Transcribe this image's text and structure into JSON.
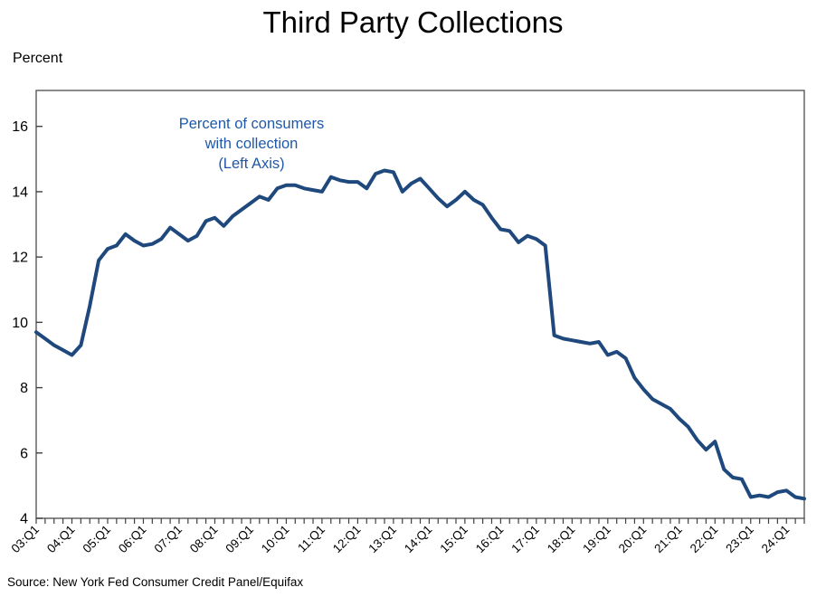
{
  "title": "Third Party Collections",
  "y_axis_unit_label": "Percent",
  "annotation": {
    "line1": "Percent of consumers",
    "line2": "with collection",
    "line3": "(Left Axis)"
  },
  "source": "Source: New York Fed Consumer Credit Panel/Equifax",
  "colors": {
    "line": "#1F497D",
    "annotation_text": "#2058A8",
    "axis": "#595959",
    "tick": "#404040",
    "label_text": "#000000",
    "background": "#FFFFFF"
  },
  "chart_data": {
    "type": "line",
    "title": "Third Party Collections",
    "series_name": "Percent of consumers with collection (Left Axis)",
    "frequency": "quarterly",
    "x_start": "2003:Q1",
    "x_end": "2024:Q3",
    "x_tick_labels": [
      "03:Q1",
      "04:Q1",
      "05:Q1",
      "06:Q1",
      "07:Q1",
      "08:Q1",
      "09:Q1",
      "10:Q1",
      "11:Q1",
      "12:Q1",
      "13:Q1",
      "14:Q1",
      "15:Q1",
      "16:Q1",
      "17:Q1",
      "18:Q1",
      "19:Q1",
      "20:Q1",
      "21:Q1",
      "22:Q1",
      "23:Q1",
      "24:Q1"
    ],
    "x_label_every_n_quarters": 4,
    "ylabel": "Percent",
    "ylim": [
      4,
      17.1
    ],
    "yticks": [
      4,
      6,
      8,
      10,
      12,
      14,
      16
    ],
    "grid": false,
    "legend_position": "none",
    "values": [
      9.7,
      9.5,
      9.3,
      9.15,
      9.0,
      9.3,
      10.5,
      11.9,
      12.25,
      12.35,
      12.7,
      12.5,
      12.35,
      12.4,
      12.55,
      12.9,
      12.7,
      12.5,
      12.65,
      13.1,
      13.2,
      12.95,
      13.25,
      13.45,
      13.65,
      13.85,
      13.75,
      14.1,
      14.2,
      14.2,
      14.1,
      14.05,
      14.0,
      14.45,
      14.35,
      14.3,
      14.3,
      14.1,
      14.55,
      14.65,
      14.6,
      14.0,
      14.25,
      14.4,
      14.1,
      13.8,
      13.55,
      13.75,
      14.0,
      13.75,
      13.6,
      13.2,
      12.85,
      12.8,
      12.45,
      12.65,
      12.55,
      12.35,
      9.6,
      9.5,
      9.45,
      9.4,
      9.35,
      9.4,
      9.0,
      9.1,
      8.9,
      8.3,
      7.95,
      7.65,
      7.5,
      7.35,
      7.05,
      6.8,
      6.4,
      6.1,
      6.35,
      5.5,
      5.25,
      5.2,
      4.65,
      4.7,
      4.65,
      4.8,
      4.85,
      4.65,
      4.6
    ]
  }
}
